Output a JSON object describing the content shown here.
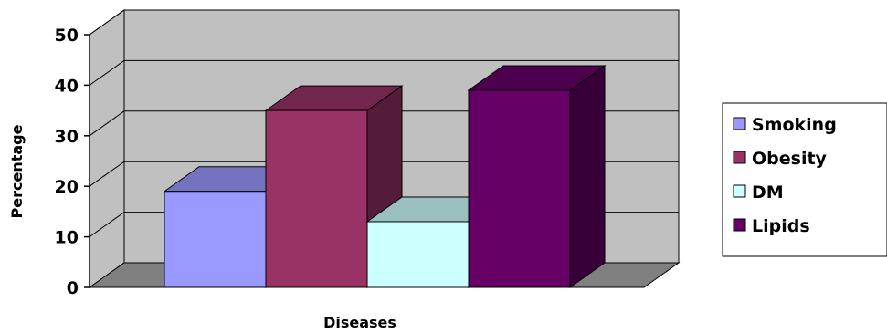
{
  "chart_data": {
    "type": "bar",
    "style": "3d-clustered-column",
    "title": "",
    "xlabel": "Diseases",
    "ylabel": "Percentage",
    "ylim": [
      0,
      50
    ],
    "yticks": [
      0,
      10,
      20,
      30,
      40,
      50
    ],
    "grid": true,
    "legend_position": "right",
    "categories": [
      ""
    ],
    "series": [
      {
        "name": "Smoking",
        "values": [
          19
        ],
        "color": "#9999ff"
      },
      {
        "name": "Obesity",
        "values": [
          35
        ],
        "color": "#993366"
      },
      {
        "name": "DM",
        "values": [
          13
        ],
        "color": "#ccffff"
      },
      {
        "name": "Lipids",
        "values": [
          39
        ],
        "color": "#660066"
      }
    ],
    "colors": {
      "wall": "#c0c0c0",
      "floor": "#808080",
      "gridline": "#000000"
    }
  }
}
